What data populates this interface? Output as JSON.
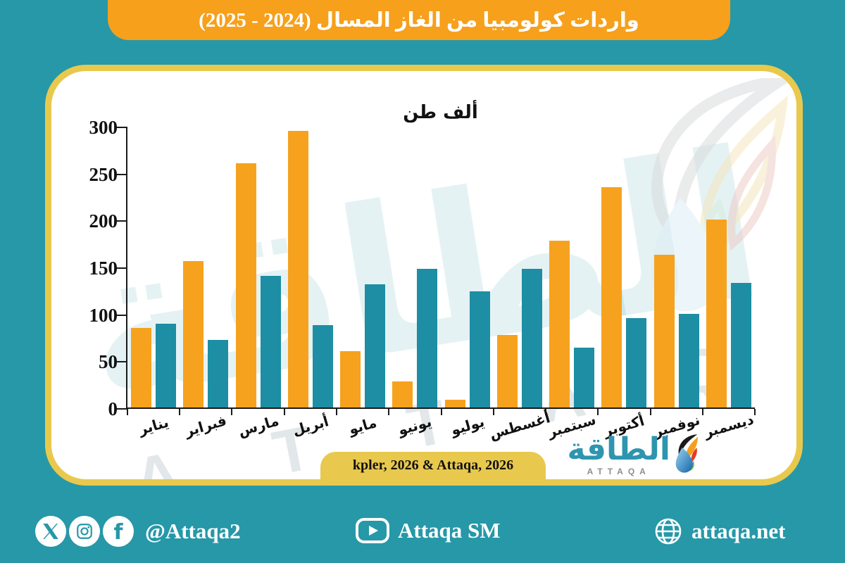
{
  "header": {
    "title": "واردات كولومبيا من الغاز المسال (2024 - 2025)"
  },
  "chart": {
    "unit_label": "ألف طن",
    "source": "kpler, 2026 & Attaqa, 2026"
  },
  "chart_data": {
    "type": "bar",
    "title": "واردات كولومبيا من الغاز المسال (2024 - 2025)",
    "ylabel": "ألف طن",
    "categories": [
      "يناير",
      "فبراير",
      "مارس",
      "أبريل",
      "مايو",
      "يونيو",
      "يوليو",
      "أغسطس",
      "سبتمبر",
      "أكتوبر",
      "نوفمبر",
      "ديسمبر"
    ],
    "series": [
      {
        "name": "orange-series",
        "color": "#F6A21E",
        "values": [
          85,
          156,
          260,
          295,
          60,
          28,
          8,
          77,
          178,
          235,
          163,
          200
        ]
      },
      {
        "name": "teal-series",
        "color": "#1D8EA3",
        "values": [
          89,
          72,
          140,
          88,
          131,
          148,
          124,
          148,
          64,
          95,
          100,
          133
        ]
      }
    ],
    "ylim": [
      0,
      300
    ],
    "yticks": [
      0,
      50,
      100,
      150,
      200,
      250,
      300
    ],
    "grid": false,
    "legend": "none"
  },
  "brand": {
    "name_arabic": "الطاقة",
    "name_latin": "ATTAQA"
  },
  "watermark": {
    "arabic": "الطاقة",
    "latin": "A T T A Q A"
  },
  "footer": {
    "social_handle": "@Attaqa2",
    "video_channel": "Attaqa SM",
    "website": "attaqa.net"
  },
  "colors": {
    "background": "#2698A8",
    "banner": "#F6A01C",
    "card_border": "#E8C94E",
    "bar_orange": "#F6A21E",
    "bar_teal": "#1D8EA3",
    "source_tab": "#E8C94E",
    "brand_teal": "#2E95AF"
  }
}
